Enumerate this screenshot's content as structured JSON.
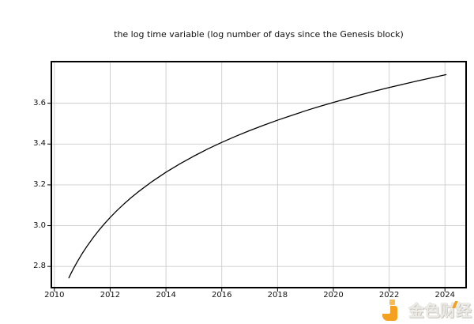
{
  "chart_data": {
    "type": "line",
    "title": "the log time variable (log number of days since the Genesis block)",
    "xlabel": "",
    "ylabel": "",
    "xlim": [
      2009.92,
      2024.73
    ],
    "ylim": [
      2.7,
      3.8
    ],
    "x_ticks": [
      2010,
      2012,
      2014,
      2016,
      2018,
      2020,
      2022,
      2024
    ],
    "x_tick_labels": [
      "2010",
      "2012",
      "2014",
      "2016",
      "2018",
      "2020",
      "2022",
      "2024"
    ],
    "y_ticks": [
      2.8,
      3.0,
      3.2,
      3.4,
      3.6
    ],
    "y_tick_labels": [
      "2.8",
      "3.0",
      "3.2",
      "3.4",
      "3.6"
    ],
    "grid": true,
    "legend": "none",
    "line_color": "#000000",
    "grid_color": "#cccccc",
    "series": [
      {
        "name": "log10 of days since the Genesis block",
        "x": [
          2010.52,
          2010.6,
          2010.7,
          2010.8,
          2010.9,
          2011.0,
          2011.2,
          2011.4,
          2011.6,
          2011.8,
          2012.0,
          2012.25,
          2012.5,
          2012.75,
          2013.0,
          2013.5,
          2014.0,
          2014.5,
          2015.0,
          2015.5,
          2016.0,
          2016.5,
          2017.0,
          2017.5,
          2018.0,
          2018.5,
          2019.0,
          2019.5,
          2020.0,
          2020.5,
          2021.0,
          2021.5,
          2022.0,
          2022.5,
          2023.0,
          2023.5,
          2024.0,
          2024.04
        ],
        "y": [
          2.744,
          2.767,
          2.793,
          2.818,
          2.841,
          2.864,
          2.905,
          2.943,
          2.978,
          3.01,
          3.04,
          3.075,
          3.107,
          3.137,
          3.165,
          3.216,
          3.262,
          3.303,
          3.341,
          3.376,
          3.408,
          3.438,
          3.466,
          3.492,
          3.517,
          3.54,
          3.563,
          3.584,
          3.604,
          3.623,
          3.642,
          3.66,
          3.677,
          3.693,
          3.709,
          3.724,
          3.739,
          3.74
        ]
      }
    ]
  },
  "watermark": {
    "text": "金色财经",
    "logo": "jinse-finance-logo",
    "orange": "#F5A01E",
    "light_orange": "#F9BC55",
    "text_color": "#ECEAE5"
  }
}
